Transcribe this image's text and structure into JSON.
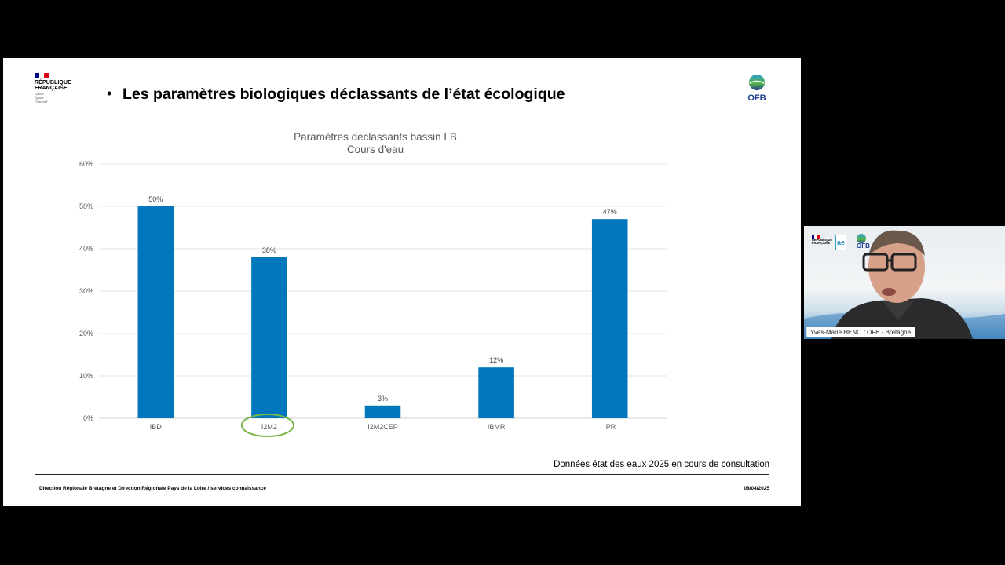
{
  "slide": {
    "bullet": "•",
    "title": "Les paramètres biologiques déclassants de l’état écologique",
    "rf_logo": {
      "line1": "RÉPUBLIQUE",
      "line2": "FRANÇAISE",
      "motto": [
        "Liberté",
        "Égalité",
        "Fraternité"
      ]
    },
    "ofb_logo": {
      "name": "OFB"
    },
    "source_note": "Données état des eaux 2025 en cours de consultation",
    "footer_left": "Direction Régionale Bretagne et Direction Régionale Pays de la Loire / services connaissance",
    "footer_date": "08/04/2025"
  },
  "chart_data": {
    "type": "bar",
    "title": "Paramètres déclassants bassin LB",
    "subtitle": "Cours d'eau",
    "categories": [
      "IBD",
      "I2M2",
      "I2M2CEP",
      "IBMR",
      "IPR"
    ],
    "values": [
      50,
      38,
      3,
      12,
      47
    ],
    "data_labels": [
      "50%",
      "38%",
      "3%",
      "12%",
      "47%"
    ],
    "ylim": [
      0,
      60
    ],
    "yticks": [
      0,
      10,
      20,
      30,
      40,
      50,
      60
    ],
    "ytick_labels": [
      "0%",
      "10%",
      "20%",
      "30%",
      "40%",
      "50%",
      "60%"
    ],
    "grid": true,
    "bar_color": "#0077bc",
    "highlight_category": "I2M2",
    "highlight_color": "#7ab648"
  },
  "webcam": {
    "name": "Yves-Marie HENO / OFB - Bretagne",
    "logos": {
      "ae": "ae",
      "ofb": "OFB"
    }
  }
}
